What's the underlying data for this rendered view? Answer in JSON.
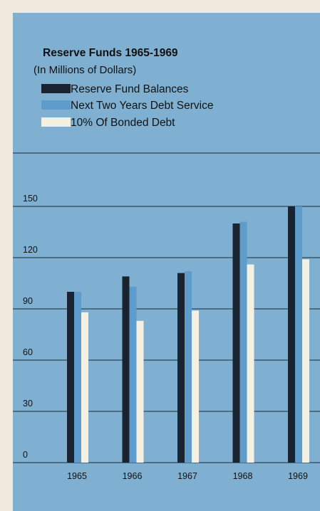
{
  "chart_data": {
    "type": "bar",
    "title": "Reserve Funds 1965-1969",
    "subtitle": "(In Millions of Dollars)",
    "categories": [
      "1965",
      "1966",
      "1967",
      "1968",
      "1969"
    ],
    "series": [
      {
        "name": "Reserve Fund Balances",
        "values": [
          100,
          109,
          111,
          140,
          150
        ],
        "color": "#1a2430"
      },
      {
        "name": "Next Two Years Debt Service",
        "values": [
          100,
          103,
          112,
          141,
          150
        ],
        "color": "#5e9ccb"
      },
      {
        "name": "10% Of Bonded Debt",
        "values": [
          88,
          83,
          89,
          116,
          119
        ],
        "color": "#f4f0e2"
      }
    ],
    "yticks": [
      0,
      30,
      60,
      90,
      120,
      150
    ],
    "ylim": [
      0,
      150
    ],
    "grid": true,
    "legend_position": "top-left"
  },
  "colors": {
    "page_background": "#efeadb",
    "panel_background": "#7fb0d1",
    "grid_line": "#1f2a33"
  }
}
